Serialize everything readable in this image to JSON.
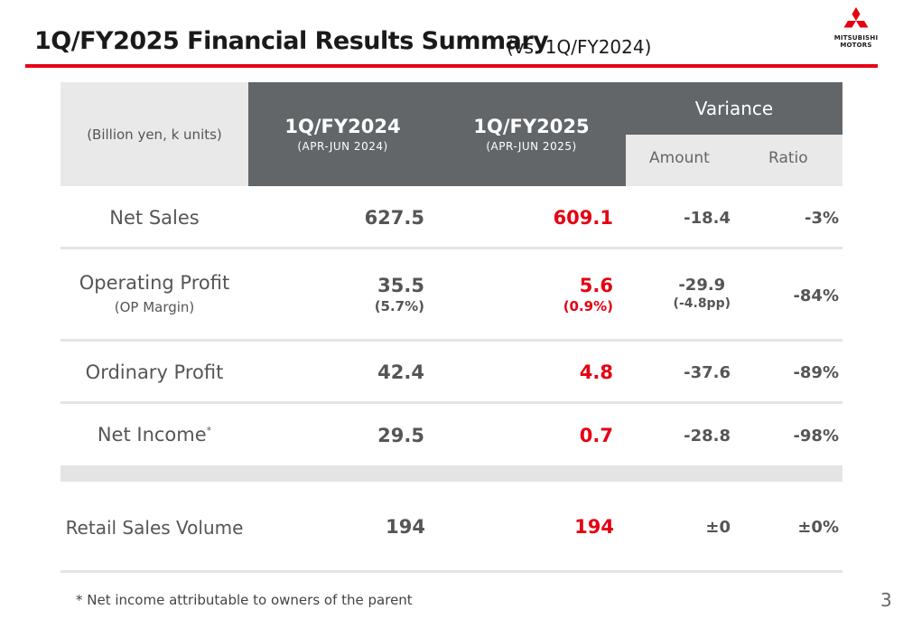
{
  "header": {
    "title": "1Q/FY2025 Financial Results Summary",
    "subtitle": "(vs. 1Q/FY2024)",
    "logo_line1": "MITSUBISHI",
    "logo_line2": "MOTORS"
  },
  "table": {
    "unit_label": "(Billion yen, k units)",
    "col_prev": {
      "label": "1Q/FY2024",
      "period": "(APR-JUN 2024)"
    },
    "col_curr": {
      "label": "1Q/FY2025",
      "period": "(APR-JUN 2025)"
    },
    "variance": {
      "label": "Variance",
      "amount": "Amount",
      "ratio": "Ratio"
    },
    "rows": {
      "net_sales": {
        "label": "Net Sales",
        "prev": "627.5",
        "curr": "609.1",
        "amount": "-18.4",
        "ratio": "-3%"
      },
      "operating_profit": {
        "label": "Operating Profit",
        "sublabel": "(OP Margin)",
        "prev": "35.5",
        "prev_sub": "(5.7%)",
        "curr": "5.6",
        "curr_sub": "(0.9%)",
        "amount": "-29.9",
        "amount_sub": "(-4.8pp)",
        "ratio": "-84%"
      },
      "ordinary_profit": {
        "label": "Ordinary Profit",
        "prev": "42.4",
        "curr": "4.8",
        "amount": "-37.6",
        "ratio": "-89%"
      },
      "net_income": {
        "label": "Net Income",
        "marker": "*",
        "prev": "29.5",
        "curr": "0.7",
        "amount": "-28.8",
        "ratio": "-98%"
      },
      "retail_sales": {
        "label": "Retail Sales Volume",
        "prev": "194",
        "curr": "194",
        "amount": "±0",
        "ratio": "±0%"
      }
    }
  },
  "footnote": "* Net income attributable to owners of the parent",
  "page_number": "3",
  "colors": {
    "accent": "#e60012",
    "header_dark": "#626669",
    "header_light": "#e9e9ea"
  }
}
